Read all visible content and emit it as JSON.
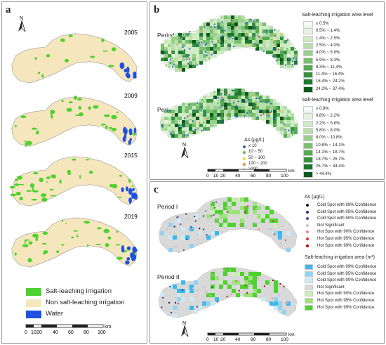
{
  "panel_a": {
    "label": "a",
    "north": "N",
    "years": [
      "2005",
      "2009",
      "2015",
      "2019"
    ],
    "legend": [
      {
        "label": "Salt-leaching irrigation",
        "color": "#4fd12f"
      },
      {
        "label": "Non salt-leaching irrigation",
        "color": "#f5e6bd"
      },
      {
        "label": "Water",
        "color": "#1d52e0"
      }
    ],
    "scale": {
      "ticks": [
        "0",
        "10",
        "20",
        "40",
        "60",
        "80",
        "100"
      ],
      "unit": "km"
    }
  },
  "panel_b": {
    "label": "b",
    "north": "N",
    "periods": [
      "Period I",
      "Period II"
    ],
    "legend1": {
      "title": "Salt-leaching irrigation area level",
      "items": [
        "≤ 0.5%",
        "0.5% ~ 1.4%",
        "1.4% ~ 2.5%",
        "2.5% ~ 4.0%",
        "4.0% ~ 5.9%",
        "5.9% ~ 8.3%",
        "8.3% ~ 11.4%",
        "11.4% ~ 16.4%",
        "16.4% ~ 24.2%",
        "24.2% ~ 37.4%"
      ]
    },
    "legend2": {
      "title": "Salt-leaching irrigation area level",
      "items": [
        "≤ 0.8%",
        "0.8% ~ 2.2%",
        "2.2% ~ 5.8%",
        "5.8% ~ 8.0%",
        "8.0% ~ 10.8%",
        "10.8% ~ 14.1%",
        "14.1% ~ 18.7%",
        "18.7% ~ 25.7%",
        "25.7% ~ 44.4%",
        "> 44.4%"
      ]
    },
    "greens": [
      "#f4fbf1",
      "#e3f3dc",
      "#cfeac5",
      "#b7dfab",
      "#99d08e",
      "#78bf70",
      "#56ab55",
      "#37933f",
      "#1d782d",
      "#0b5a1e"
    ],
    "as_legend": {
      "title": "As (μg/L)",
      "items": [
        {
          "label": "≤ 10",
          "color": "#2a5bd7"
        },
        {
          "label": "10 ~ 50",
          "color": "#56c243"
        },
        {
          "label": "50 ~ 100",
          "color": "#f0d43a"
        },
        {
          "label": "100 ~ 200",
          "color": "#f08a2a"
        },
        {
          "label": ">200",
          "color": "#d6262b"
        }
      ]
    },
    "scale": {
      "ticks": [
        "0",
        "10",
        "20",
        "40",
        "60",
        "80",
        "100"
      ],
      "unit": "km"
    }
  },
  "panel_c": {
    "label": "c",
    "north": "N",
    "periods": [
      "Period I",
      "Period II"
    ],
    "as_legend": {
      "title": "As (μg/L)",
      "items": [
        {
          "label": "Cold Spot with 99% Confidence",
          "color": "#111111"
        },
        {
          "label": "Cold Spot with 95% Confidence",
          "color": "#2b2b7a"
        },
        {
          "label": "Cold Spot with 90% Confidence",
          "color": "#6a3d9a"
        },
        {
          "label": "Not Significant",
          "color": "#c8c8c8"
        },
        {
          "label": "Hot Spot with 90% Confidence",
          "color": "#f08080"
        },
        {
          "label": "Hot Spot with 95% Confidence",
          "color": "#e03030"
        },
        {
          "label": "Hot Spot with 99% Confidence",
          "color": "#b00000"
        }
      ]
    },
    "area_legend": {
      "title": "Salt-leaching irrigation area (m²)",
      "items": [
        {
          "label": "Cold Spot with 99% Confidence",
          "color": "#3bb8ee"
        },
        {
          "label": "Cold Spot with 95% Confidence",
          "color": "#8fd3f2"
        },
        {
          "label": "Cold Spot with 90% Confidence",
          "color": "#cfeaf7"
        },
        {
          "label": "Not Significant",
          "color": "#d9d9d9"
        },
        {
          "label": "Hot Spot with 90% Confidence",
          "color": "#cdeeb8"
        },
        {
          "label": "Hot Spot with 95% Confidence",
          "color": "#9be47a"
        },
        {
          "label": "Hot Spot with 99% Confidence",
          "color": "#4fd12f"
        }
      ]
    },
    "scale": {
      "ticks": [
        "0",
        "10",
        "20",
        "40",
        "60",
        "80",
        "100"
      ],
      "unit": "km"
    }
  }
}
